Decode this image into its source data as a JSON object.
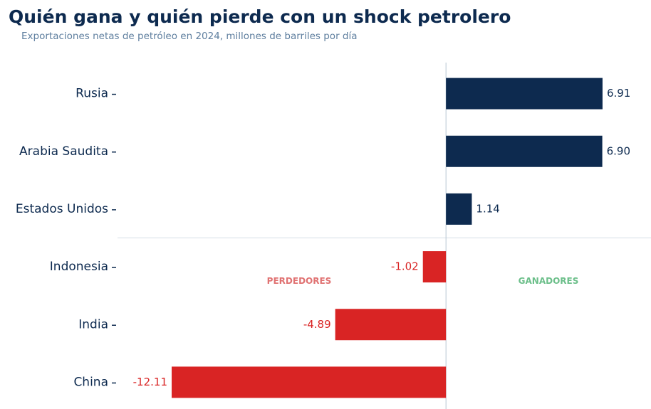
{
  "chart_data": {
    "type": "barh",
    "title": "Quién gana y quién pierde con un shock petrolero",
    "subtitle": "Exportaciones netas de petróleo en 2024, millones de barriles por día",
    "categories": [
      "Rusia",
      "Arabia Saudita",
      "Estados Unidos",
      "Indonesia",
      "India",
      "China"
    ],
    "values": [
      6.91,
      6.9,
      1.14,
      -1.02,
      -4.89,
      -12.11
    ],
    "value_labels": [
      "6.91",
      "6.90",
      "1.14",
      "-1.02",
      "-4.89",
      "-12.11"
    ],
    "positive_color": "#0d2a4f",
    "negative_color": "#d92424",
    "xlim": [
      -14.5,
      9.05
    ],
    "annotations": [
      {
        "text": "PERDEDORES",
        "color": "#e07272"
      },
      {
        "text": "GANADORES",
        "color": "#6cbf8a"
      }
    ]
  }
}
